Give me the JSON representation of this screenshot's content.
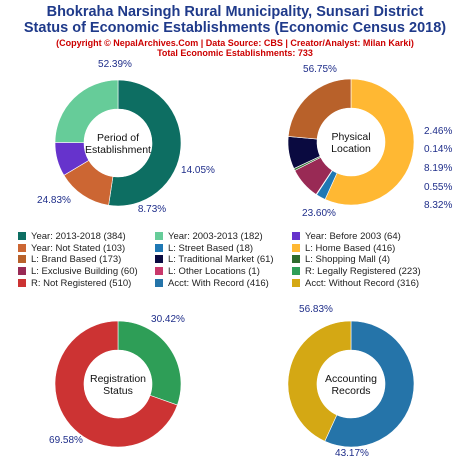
{
  "header": {
    "title_line1": "Bhokraha Narsingh Rural Municipality, Sunsari District",
    "title_line2": "Status of Economic Establishments (Economic Census 2018)",
    "copyright": "(Copyright © NepalArchives.Com | Data Source: CBS | Creator/Analyst: Milan Karki)",
    "total": "Total Economic Establishments: 733"
  },
  "chart_data": [
    {
      "type": "pie",
      "center_label": [
        "Period of",
        "Establishment"
      ],
      "slices": [
        {
          "category": "Year: 2013-2018",
          "value": 384,
          "pct_label": "52.39%",
          "color": "#0d6e62"
        },
        {
          "category": "Year: Not Stated",
          "value": 103,
          "pct_label": "14.05%",
          "color": "#cc6633"
        },
        {
          "category": "Year: Before 2003",
          "value": 64,
          "pct_label": "8.73%",
          "color": "#6633cc"
        },
        {
          "category": "Year: 2003-2013",
          "value": 182,
          "pct_label": "24.83%",
          "color": "#66cc99"
        }
      ]
    },
    {
      "type": "pie",
      "center_label": [
        "Physical",
        "Location"
      ],
      "slices": [
        {
          "category": "L: Home Based",
          "value": 416,
          "pct_label": "56.75%",
          "color": "#ffb833"
        },
        {
          "category": "L: Street Based",
          "value": 18,
          "pct_label": "2.46%",
          "color": "#1f78b4"
        },
        {
          "category": "L: Other Locations",
          "value": 1,
          "pct_label": "0.14%",
          "color": "#c9386b"
        },
        {
          "category": "L: Exclusive Building",
          "value": 60,
          "pct_label": "8.19%",
          "color": "#992a55"
        },
        {
          "category": "L: Shopping Mall",
          "value": 4,
          "pct_label": "0.55%",
          "color": "#2e6b2e"
        },
        {
          "category": "L: Traditional Market",
          "value": 61,
          "pct_label": "8.32%",
          "color": "#0a0a40"
        },
        {
          "category": "L: Brand Based",
          "value": 173,
          "pct_label": "23.60%",
          "color": "#b8612a"
        }
      ]
    },
    {
      "type": "pie",
      "center_label": [
        "Registration",
        "Status"
      ],
      "slices": [
        {
          "category": "R: Legally Registered",
          "value": 223,
          "pct_label": "30.42%",
          "color": "#2e9e57"
        },
        {
          "category": "R: Not Registered",
          "value": 510,
          "pct_label": "69.58%",
          "color": "#cc3333"
        }
      ]
    },
    {
      "type": "pie",
      "center_label": [
        "Accounting",
        "Records"
      ],
      "slices": [
        {
          "category": "Acct: With Record",
          "value": 416,
          "pct_label": "56.83%",
          "color": "#2574a9"
        },
        {
          "category": "Acct: Without Record",
          "value": 316,
          "pct_label": "43.17%",
          "color": "#d4a814"
        }
      ]
    }
  ],
  "legend": [
    {
      "label": "Year: 2013-2018 (384)",
      "color": "#0d6e62"
    },
    {
      "label": "Year: 2003-2013 (182)",
      "color": "#66cc99"
    },
    {
      "label": "Year: Before 2003 (64)",
      "color": "#6633cc"
    },
    {
      "label": "Year: Not Stated (103)",
      "color": "#cc6633"
    },
    {
      "label": "L: Street Based (18)",
      "color": "#1f78b4"
    },
    {
      "label": "L: Home Based (416)",
      "color": "#ffb833"
    },
    {
      "label": "L: Brand Based (173)",
      "color": "#b8612a"
    },
    {
      "label": "L: Traditional Market (61)",
      "color": "#0a0a40"
    },
    {
      "label": "L: Shopping Mall (4)",
      "color": "#2e6b2e"
    },
    {
      "label": "L: Exclusive Building (60)",
      "color": "#992a55"
    },
    {
      "label": "L: Other Locations (1)",
      "color": "#c9386b"
    },
    {
      "label": "R: Legally Registered (223)",
      "color": "#2e9e57"
    },
    {
      "label": "R: Not Registered (510)",
      "color": "#cc3333"
    },
    {
      "label": "Acct: With Record (416)",
      "color": "#2574a9"
    },
    {
      "label": "Acct: Without Record (316)",
      "color": "#d4a814"
    }
  ]
}
